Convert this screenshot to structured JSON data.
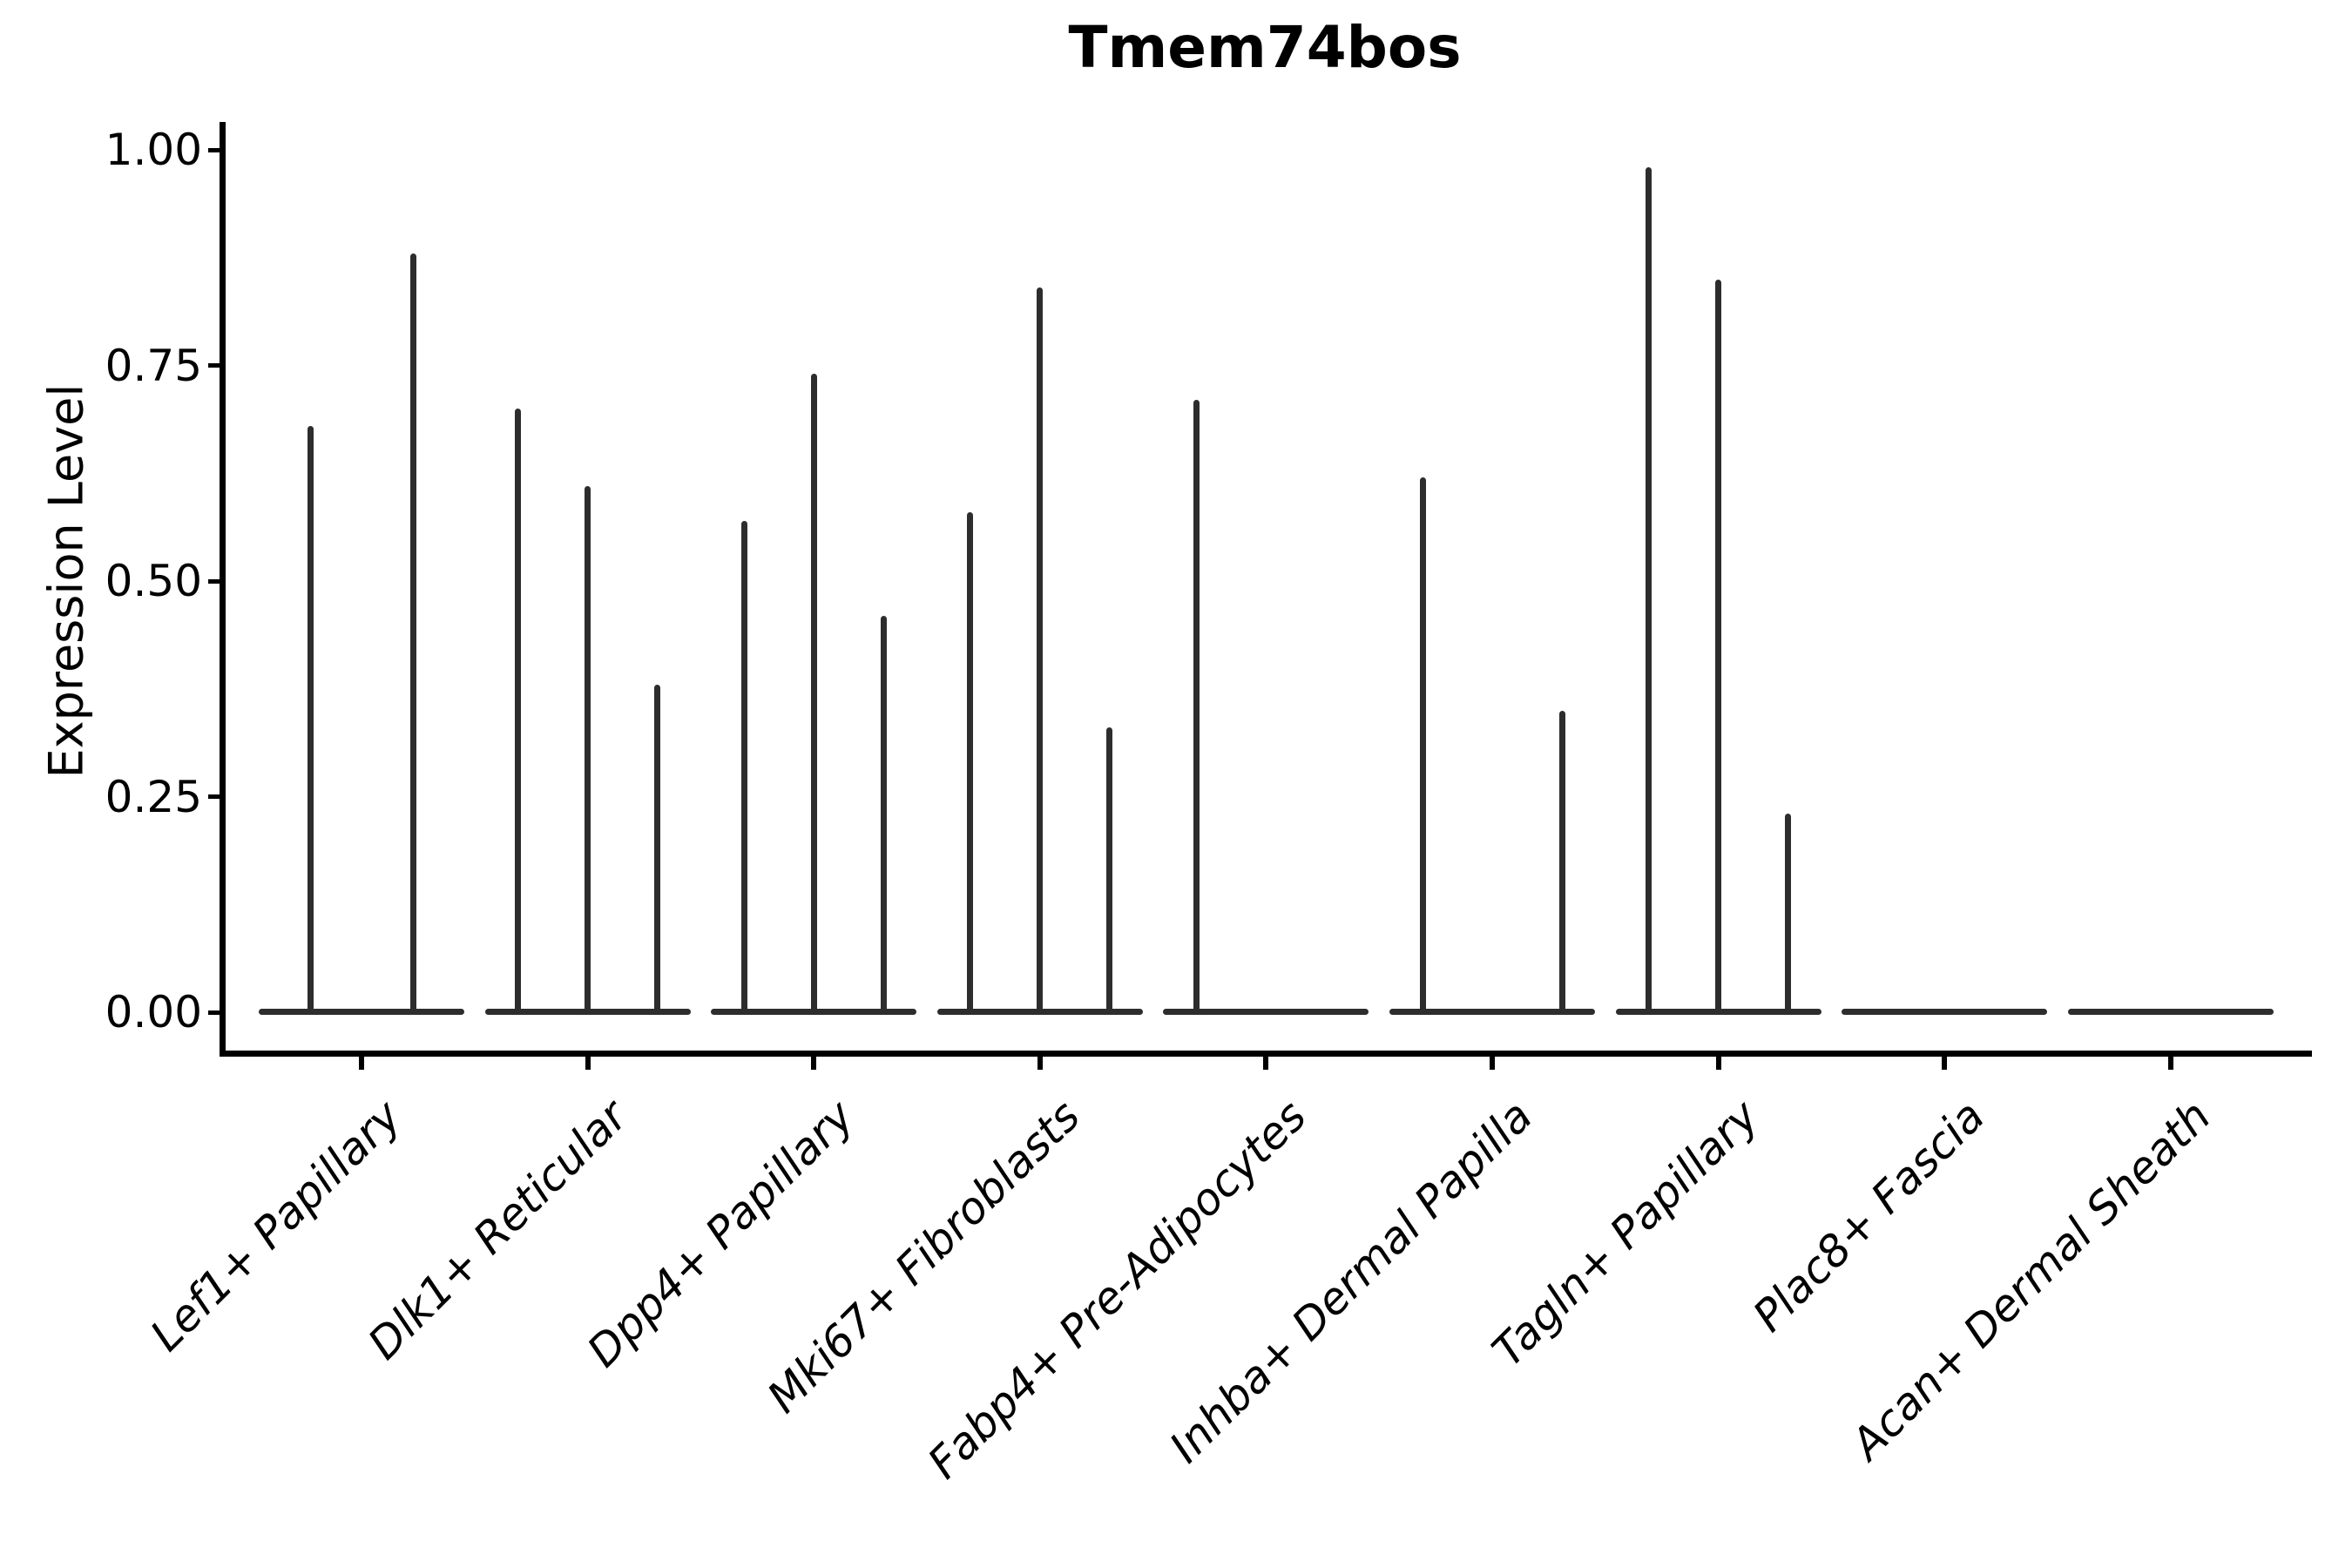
{
  "chart_data": {
    "type": "violin",
    "title": "Tmem74bos",
    "ylabel": "Expression Level",
    "xlabel": "",
    "grid": false,
    "legend": "none",
    "background": "#ffffff",
    "violin_color": "#2d2d2d",
    "axis_color": "#000000",
    "ylim": [
      -0.05,
      1.05
    ],
    "yticks": [
      {
        "label": "0.00",
        "value": 0.0
      },
      {
        "label": "0.25",
        "value": 0.25
      },
      {
        "label": "0.50",
        "value": 0.5
      },
      {
        "label": "0.75",
        "value": 0.75
      },
      {
        "label": "1.00",
        "value": 1.0
      }
    ],
    "categories": [
      "Lef1+ Papillary",
      "Dlk1+ Reticular",
      "Dpp4+ Papillary",
      "Mki67+ Fibroblasts",
      "Fabp4+ Pre-Adipocytes",
      "Inhba+ Dermal Papilla",
      "Tagln+ Papillary",
      "Plac8+ Fascia",
      "Acan+ Dermal Sheath"
    ],
    "groups": [
      {
        "category": "Lef1+ Papillary",
        "violins": [
          {
            "dx": -59,
            "max": 0.68
          },
          {
            "dx": 59,
            "max": 0.88
          }
        ]
      },
      {
        "category": "Dlk1+ Reticular",
        "violins": [
          {
            "dx": -80,
            "max": 0.7
          },
          {
            "dx": 0,
            "max": 0.61
          },
          {
            "dx": 80,
            "max": 0.38
          }
        ]
      },
      {
        "category": "Dpp4+ Papillary",
        "violins": [
          {
            "dx": -80,
            "max": 0.57
          },
          {
            "dx": 0,
            "max": 0.74
          },
          {
            "dx": 80,
            "max": 0.46
          }
        ]
      },
      {
        "category": "Mki67+ Fibroblasts",
        "violins": [
          {
            "dx": -80,
            "max": 0.58
          },
          {
            "dx": 0,
            "max": 0.84
          },
          {
            "dx": 80,
            "max": 0.33
          }
        ]
      },
      {
        "category": "Fabp4+ Pre-Adipocytes",
        "violins": [
          {
            "dx": -80,
            "max": 0.71
          }
        ]
      },
      {
        "category": "Inhba+ Dermal Papilla",
        "violins": [
          {
            "dx": -80,
            "max": 0.62
          },
          {
            "dx": 80,
            "max": 0.35
          }
        ]
      },
      {
        "category": "Tagln+ Papillary",
        "violins": [
          {
            "dx": -80,
            "max": 0.98
          },
          {
            "dx": 0,
            "max": 0.85
          },
          {
            "dx": 80,
            "max": 0.23
          }
        ]
      },
      {
        "category": "Plac8+ Fascia",
        "violins": []
      },
      {
        "category": "Acan+ Dermal Sheath",
        "violins": []
      }
    ],
    "all_violins_min": 0.0
  }
}
